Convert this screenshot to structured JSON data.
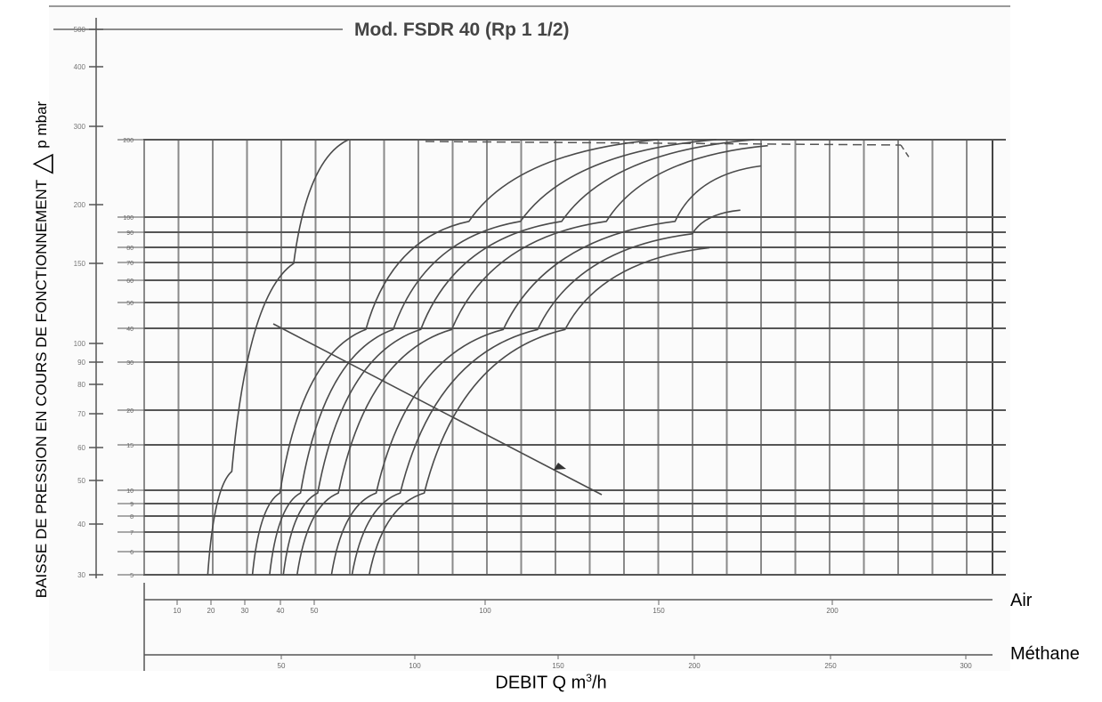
{
  "chart_data": {
    "type": "line",
    "title": "Mod. FSDR 40 (Rp 1 1/2)",
    "ylabel": "BAISSE DE PRESSION EN COURS DE FONCTIONNEMENT",
    "ylabel_suffix": "p mbar",
    "ylabel_symbol": "△",
    "xlabel": "DEBIT Q m",
    "xlabel_sup": "3",
    "xlabel_unit": "/h",
    "x_rows": [
      {
        "name": "Air",
        "ticks": [
          "10",
          "20",
          "30",
          "40",
          "50",
          "100",
          "150",
          "200"
        ]
      },
      {
        "name": "Méthane",
        "ticks": [
          "50",
          "100",
          "150",
          "200",
          "250",
          "300"
        ]
      }
    ],
    "y_ticks_inner": [
      "200",
      "100",
      "90",
      "80",
      "70",
      "60",
      "50",
      "40",
      "30",
      "20",
      "15",
      "10",
      "9",
      "8",
      "7",
      "6",
      "5"
    ],
    "y_ticks_outer": [
      "500",
      "400",
      "300",
      "200",
      "150",
      "100",
      "90",
      "80",
      "70",
      "60",
      "50",
      "40",
      "30"
    ],
    "series": [
      {
        "points": [
          [
            19,
            5
          ],
          [
            26,
            12
          ],
          [
            44,
            70
          ],
          [
            60,
            200
          ]
        ]
      },
      {
        "points": [
          [
            32,
            5
          ],
          [
            40,
            10
          ],
          [
            65,
            40
          ],
          [
            95,
            100
          ],
          [
            150,
            200
          ]
        ]
      },
      {
        "points": [
          [
            37,
            5
          ],
          [
            46,
            10
          ],
          [
            73,
            40
          ],
          [
            110,
            100
          ],
          [
            167,
            200
          ]
        ]
      },
      {
        "points": [
          [
            41,
            5
          ],
          [
            51,
            10
          ],
          [
            81,
            40
          ],
          [
            122,
            100
          ],
          [
            178,
            200
          ]
        ]
      },
      {
        "points": [
          [
            45,
            5
          ],
          [
            57,
            10
          ],
          [
            90,
            40
          ],
          [
            135,
            100
          ],
          [
            182,
            190
          ]
        ]
      },
      {
        "points": [
          [
            55,
            5
          ],
          [
            68,
            10
          ],
          [
            105,
            40
          ],
          [
            155,
            100
          ],
          [
            180,
            160
          ]
        ]
      },
      {
        "points": [
          [
            61,
            5
          ],
          [
            75,
            10
          ],
          [
            115,
            40
          ],
          [
            160,
            90
          ],
          [
            174,
            110
          ]
        ]
      },
      {
        "points": [
          [
            66,
            5
          ],
          [
            82,
            10
          ],
          [
            123,
            40
          ],
          [
            165,
            80
          ]
        ]
      }
    ]
  }
}
